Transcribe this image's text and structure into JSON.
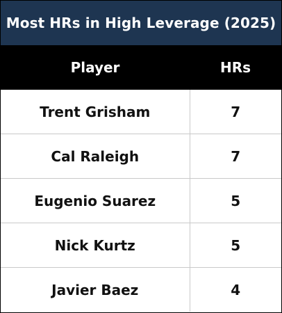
{
  "colors": {
    "title_background": "#1e3551",
    "header_background": "#000000",
    "header_text": "#ffffff",
    "body_text": "#111111",
    "gridline": "#c9c9c9"
  },
  "chart_data": {
    "type": "table",
    "title": "Most HRs in High Leverage (2025)",
    "columns": [
      "Player",
      "HRs"
    ],
    "rows": [
      [
        "Trent Grisham",
        7
      ],
      [
        "Cal Raleigh",
        7
      ],
      [
        "Eugenio Suarez",
        5
      ],
      [
        "Nick Kurtz",
        5
      ],
      [
        "Javier Baez",
        4
      ]
    ]
  }
}
